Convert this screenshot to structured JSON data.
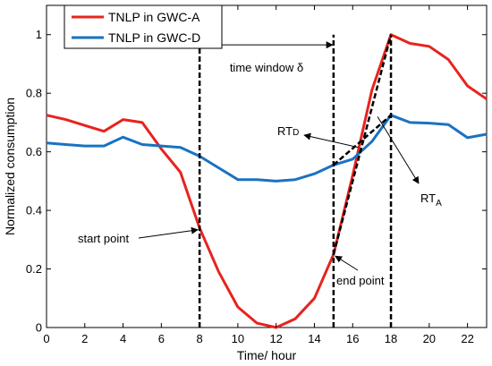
{
  "chart_data": {
    "type": "line",
    "xlabel": "Time/ hour",
    "ylabel": "Normalized consumption",
    "xlim": [
      0,
      23
    ],
    "ylim": [
      0,
      1.1
    ],
    "x_ticks": [
      0,
      2,
      4,
      6,
      8,
      10,
      12,
      14,
      16,
      18,
      20,
      22
    ],
    "y_ticks": [
      0,
      0.2,
      0.4,
      0.6,
      0.8,
      1
    ],
    "y_tick_labels": [
      "0",
      "0.2",
      "0.4",
      "0.6",
      "0.8",
      "1"
    ],
    "grid": false,
    "legend_position": "top-left",
    "x": [
      0,
      1,
      2,
      3,
      4,
      5,
      6,
      7,
      8,
      9,
      10,
      11,
      12,
      13,
      14,
      15,
      16,
      17,
      18,
      19,
      20,
      21,
      22,
      23
    ],
    "series": [
      {
        "name": "TNLP in GWC-A",
        "color": "#e8231e",
        "values": [
          0.725,
          0.71,
          0.69,
          0.67,
          0.71,
          0.7,
          0.61,
          0.53,
          0.34,
          0.19,
          0.07,
          0.015,
          0.0,
          0.03,
          0.1,
          0.25,
          0.52,
          0.81,
          1.0,
          0.97,
          0.96,
          0.915,
          0.825,
          0.78
        ]
      },
      {
        "name": "TNLP in GWC-D",
        "color": "#1a72c2",
        "values": [
          0.63,
          0.625,
          0.62,
          0.62,
          0.65,
          0.625,
          0.62,
          0.615,
          0.585,
          0.545,
          0.505,
          0.505,
          0.5,
          0.505,
          0.525,
          0.555,
          0.575,
          0.635,
          0.725,
          0.7,
          0.698,
          0.693,
          0.648,
          0.66
        ]
      }
    ],
    "vlines": [
      {
        "x": 8,
        "y_top": 1.0
      },
      {
        "x": 15,
        "y_top": 1.0
      },
      {
        "x": 18,
        "y_top": 1.0
      }
    ],
    "rt_lines": [
      {
        "from": [
          15,
          0.25
        ],
        "to": [
          18,
          1.0
        ]
      },
      {
        "from": [
          15,
          0.555
        ],
        "to": [
          18,
          0.725
        ]
      }
    ],
    "window_arrow": {
      "x1": 8,
      "x2": 15,
      "y": 0.965
    },
    "annotations": {
      "time_window": "time window δ",
      "start_point": "start point",
      "end_point": "end point",
      "rt_d_main": "RT",
      "rt_d_sub": "D",
      "rt_a_main": "RT",
      "rt_a_sub": "A"
    }
  }
}
